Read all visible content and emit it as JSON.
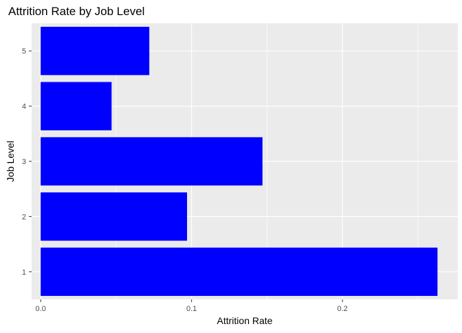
{
  "chart_data": {
    "type": "bar",
    "orientation": "horizontal",
    "title": "Attrition Rate by Job Level",
    "xlabel": "Attrition Rate",
    "ylabel": "Job Level",
    "categories": [
      "1",
      "2",
      "3",
      "4",
      "5"
    ],
    "values": [
      0.263,
      0.097,
      0.147,
      0.047,
      0.072
    ],
    "xlim": [
      -0.006,
      0.2765
    ],
    "x_ticks": [
      "0.0",
      "0.1",
      "0.2"
    ],
    "x_tick_values": [
      0.0,
      0.1,
      0.2
    ],
    "grid": true,
    "colors": {
      "bar": "#0000ff",
      "panel_background": "#ebebeb",
      "grid_major": "#ffffff",
      "axis_text": "#4d4d4d",
      "title_text": "#000000"
    }
  }
}
